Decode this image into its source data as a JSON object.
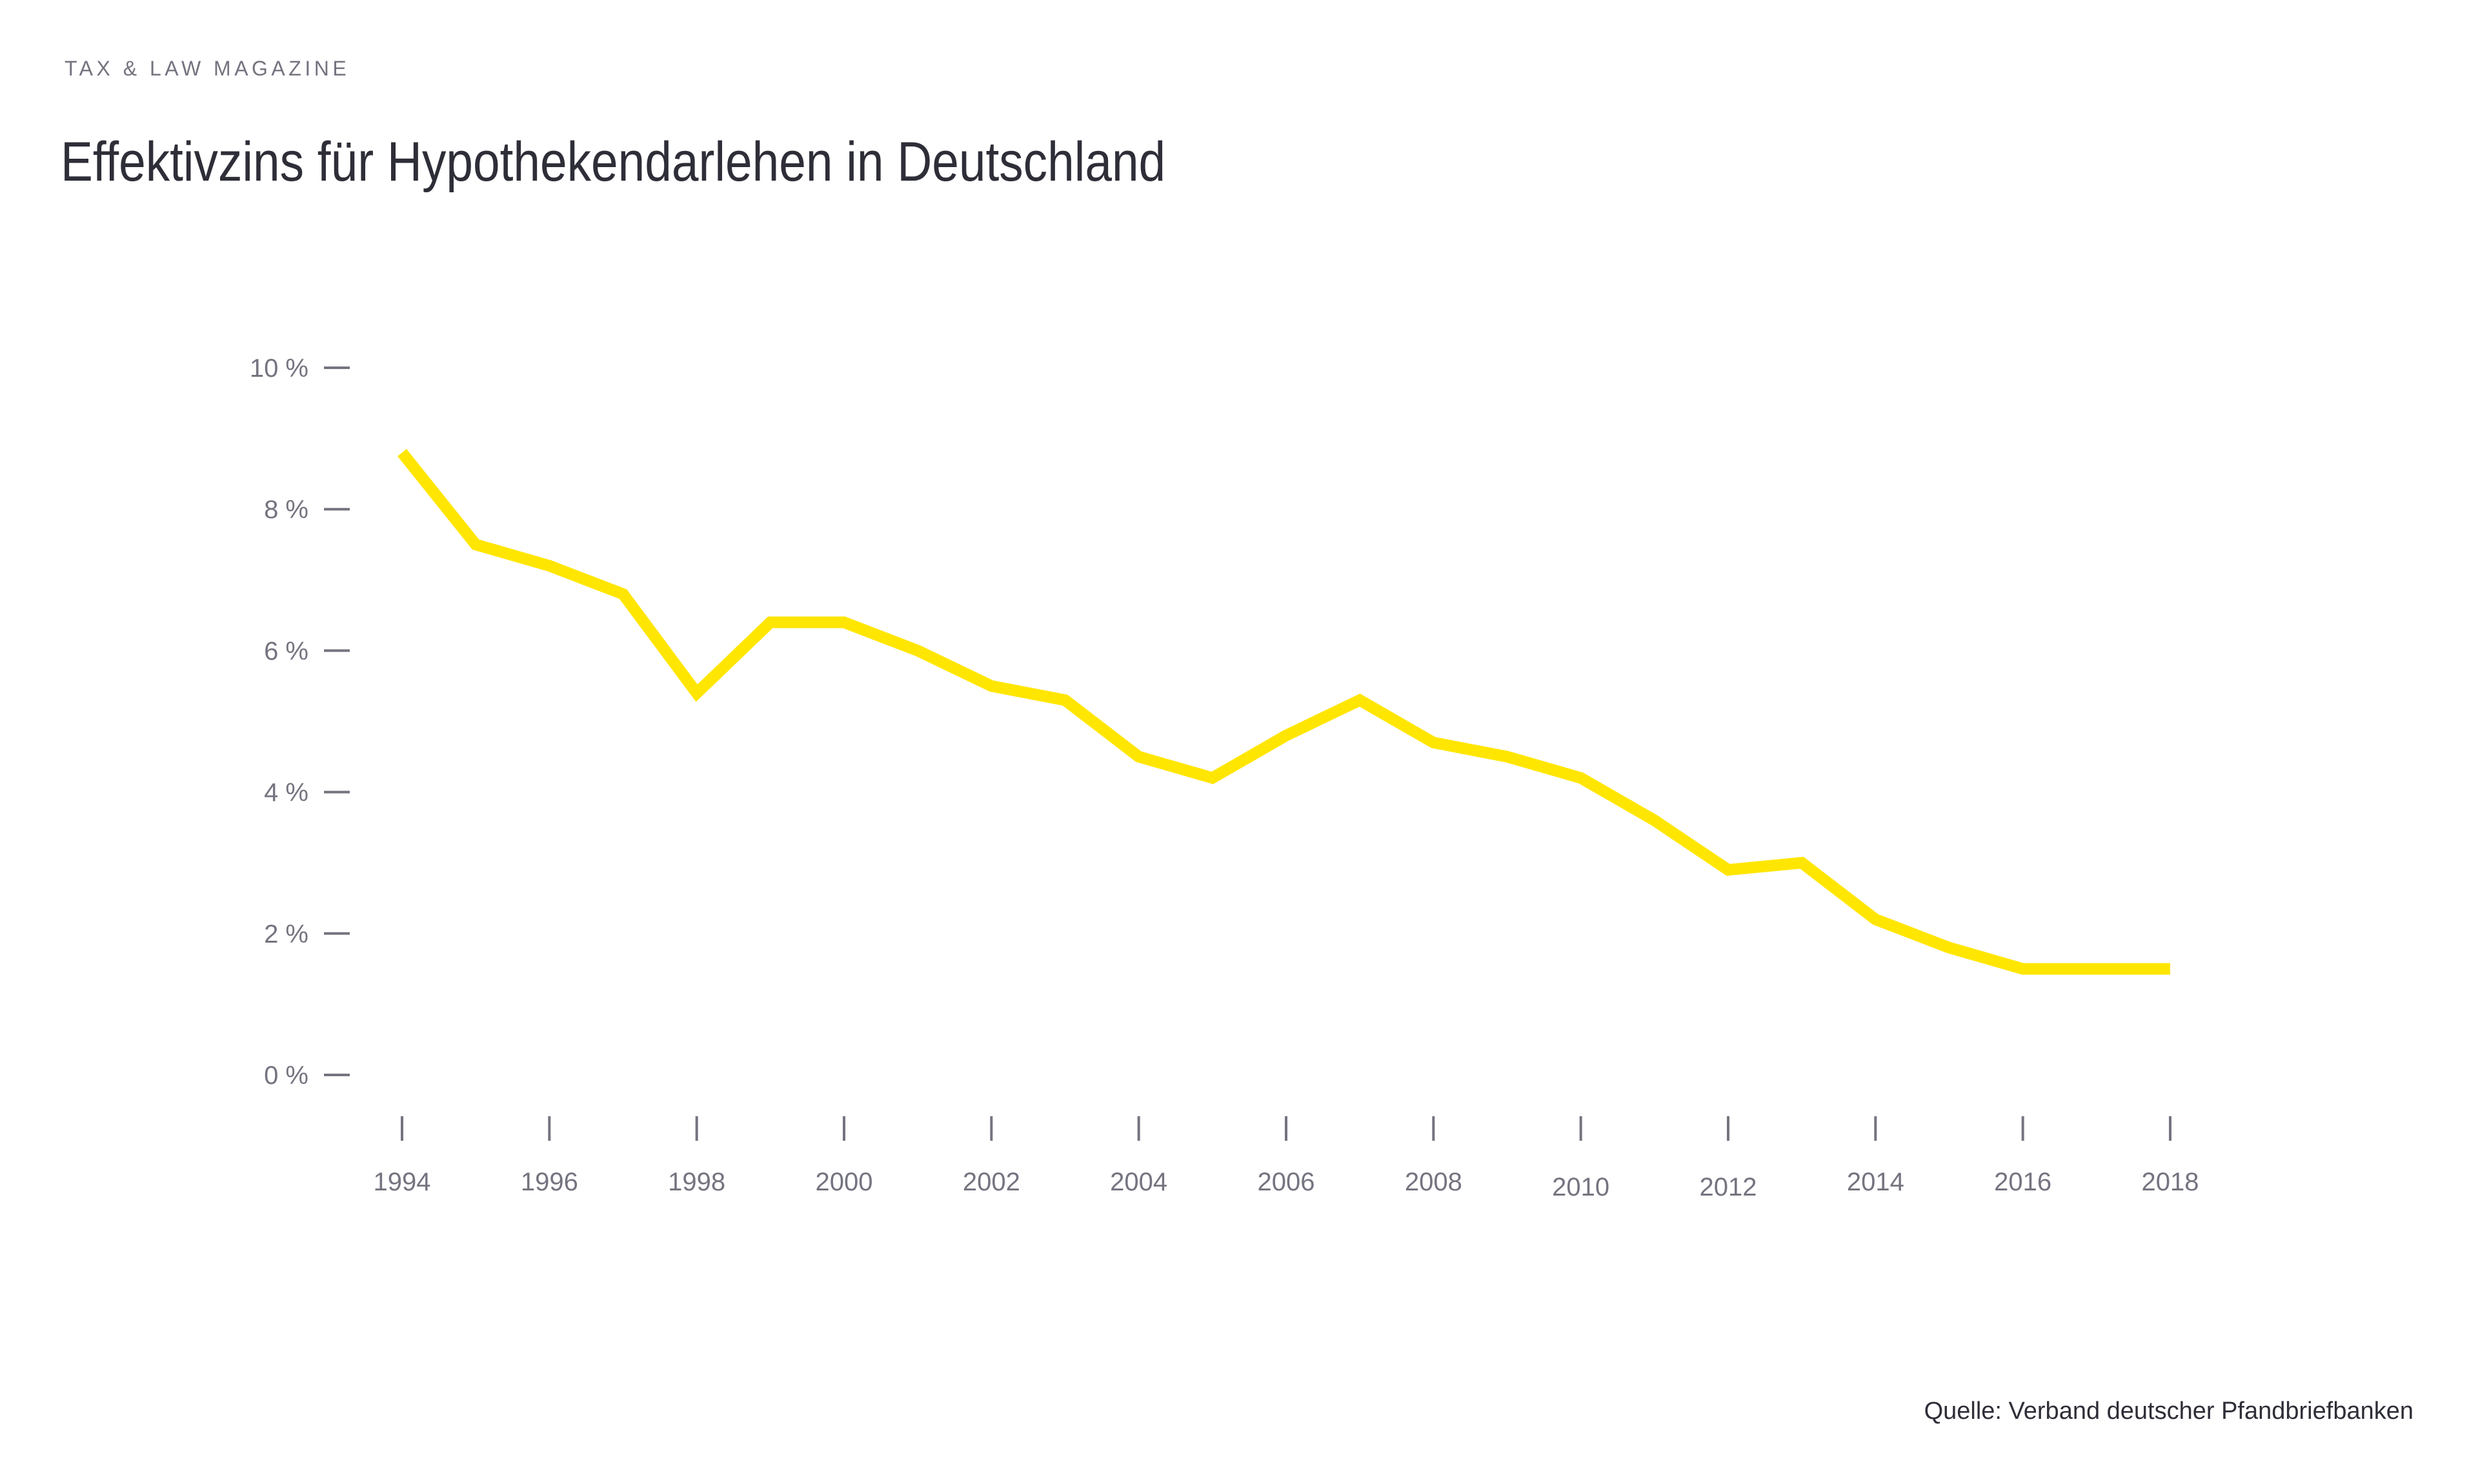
{
  "header": {
    "kicker": "TAX & LAW MAGAZINE",
    "title": "Effektivzins für Hypothekendarlehen in Deutschland"
  },
  "footer": {
    "source": "Quelle: Verband deutscher Pfandbriefbanken"
  },
  "chart_data": {
    "type": "line",
    "title": "Effektivzins für Hypothekendarlehen in Deutschland",
    "x": [
      1994,
      1995,
      1996,
      1997,
      1998,
      1999,
      2000,
      2001,
      2002,
      2003,
      2004,
      2005,
      2006,
      2007,
      2008,
      2009,
      2010,
      2011,
      2012,
      2013,
      2014,
      2015,
      2016,
      2017,
      2018
    ],
    "values": [
      8.8,
      7.5,
      7.2,
      6.8,
      5.4,
      6.4,
      6.4,
      6.0,
      5.5,
      5.3,
      4.5,
      4.2,
      4.8,
      5.3,
      4.7,
      4.5,
      4.2,
      3.6,
      2.9,
      3.0,
      2.2,
      1.8,
      1.5,
      1.5,
      1.5
    ],
    "unit": "%",
    "xlabel": "",
    "ylabel": "",
    "ylim": [
      0,
      10
    ],
    "y_ticks": [
      {
        "value": 10,
        "label": "10 %"
      },
      {
        "value": 8,
        "label": "8 %"
      },
      {
        "value": 6,
        "label": "6 %"
      },
      {
        "value": 4,
        "label": "4 %"
      },
      {
        "value": 2,
        "label": "2 %"
      },
      {
        "value": 0,
        "label": "0 %"
      }
    ],
    "x_ticks": [
      1994,
      1996,
      1998,
      2000,
      2002,
      2004,
      2006,
      2008,
      2010,
      2012,
      2014,
      2016,
      2018
    ],
    "grid": "off",
    "legend": "none",
    "line_color": "#ffe600",
    "axis_color": "#747480",
    "text_color": "#2e2e38",
    "background_color": "#ffffff"
  }
}
